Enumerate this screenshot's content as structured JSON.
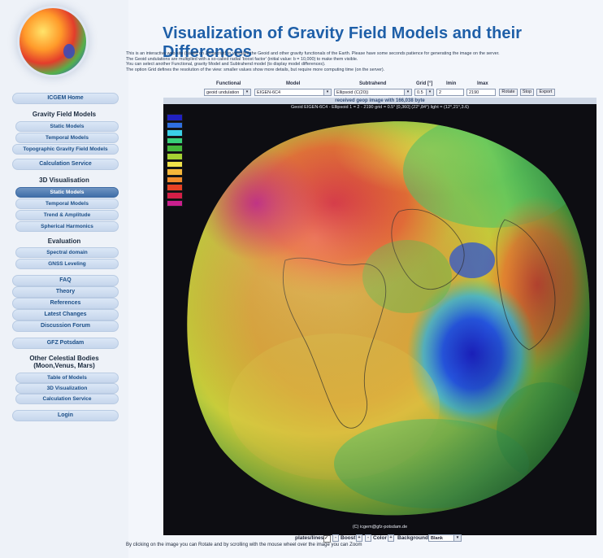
{
  "header": {
    "title": "Visualization of Gravity Field Models and their Differences",
    "intro": [
      "This is an interactive web site (based on Javascript) to visualize the Geoid and other gravity functionals of the Earth. Please have some seconds patience for generating the image on the server.",
      "The Geoid undulations are multiplied with a so-called radial 'boost factor' (initial value: b = 10,000) to make them visible.",
      "You can select another Functional, gravity Model and Subtrahend model (to display model differences).",
      "The option Grid defines the resolution of the view: smaller values show more details, but require more computing time (on the server)."
    ]
  },
  "sidebar": {
    "home": "ICGEM Home",
    "gravity_heading": "Gravity Field Models",
    "gravity_items": [
      "Static Models",
      "Temporal Models",
      "Topographic Gravity Field Models"
    ],
    "calculation": "Calculation Service",
    "vis_heading": "3D Visualisation",
    "vis_items": [
      "Static Models",
      "Temporal Models",
      "Trend & Amplitude",
      "Spherical Harmonics"
    ],
    "eval_heading": "Evaluation",
    "eval_items": [
      "Spectral domain",
      "GNSS Leveling"
    ],
    "misc_items": [
      "FAQ",
      "Theory",
      "References",
      "Latest Changes",
      "Discussion Forum"
    ],
    "gfz": "GFZ Potsdam",
    "celestial_heading_1": "Other Celestial Bodies",
    "celestial_heading_2": "(Moon,Venus, Mars)",
    "celestial_items": [
      "Table of Models",
      "3D Visualization",
      "Calculation Service"
    ],
    "login": "Login"
  },
  "controls": {
    "labels": {
      "functional": "Functional",
      "model": "Model",
      "subtrahend": "Subtrahend",
      "grid": "Grid [°]",
      "lmin": "lmin",
      "lmax": "lmax"
    },
    "functional_value": "geoid undulation",
    "model_value": "EIGEN-6C4",
    "subtrahend_value": "Ellipsoid (C(20))",
    "grid_value": "0.5",
    "lmin_value": "2",
    "lmax_value": "2190",
    "rotate_label": "Rotate",
    "stop_label": "Stop",
    "export_label": "Export"
  },
  "viewer": {
    "status": "received geop image with 166,038 byte",
    "info": "Geoid EIGEN-6C4 - Ellipsoid 1 = 2 - 2190 grid = 0.5° [0,360] (22°,84°) light = (12°,21°,3.6)",
    "copyright": "(C) icgem@gfz-potsdam.de",
    "legend_colors": [
      "#2020c0",
      "#2f6fe0",
      "#3ad0e8",
      "#37d07a",
      "#44b83a",
      "#a6d233",
      "#f0e24a",
      "#f6b73a",
      "#f08a2b",
      "#e84224",
      "#d41f47",
      "#c91f8e"
    ]
  },
  "bottom": {
    "plates_label": "plates/lines",
    "boost_label": "Boost",
    "color_label": "Color",
    "background_label": "Background",
    "background_value": "Blank",
    "plus": "+",
    "minus": "-",
    "note": "By clicking on the image you can Rotate and by scrolling with the mouse wheel over the image you can Zoom"
  }
}
